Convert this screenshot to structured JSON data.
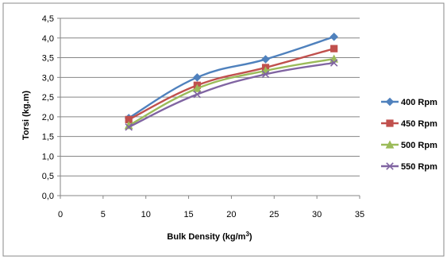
{
  "chart_data": {
    "type": "line",
    "xlabel": "Bulk Density (kg/m³)",
    "xlabel_main": "Bulk Density (kg/m",
    "xlabel_sup": "3",
    "xlabel_end": ")",
    "ylabel": "Torsi (kg.m)",
    "xlim": [
      0,
      35
    ],
    "ylim": [
      0,
      4.5
    ],
    "x_ticks": [
      "0",
      "5",
      "10",
      "15",
      "20",
      "25",
      "30",
      "35"
    ],
    "y_ticks": [
      "0,0",
      "0,5",
      "1,0",
      "1,5",
      "2,0",
      "2,5",
      "3,0",
      "3,5",
      "4,0",
      "4,5"
    ],
    "x": [
      8,
      16,
      24,
      32
    ],
    "grid": true,
    "legend_position": "right",
    "series": [
      {
        "name": "400 Rpm",
        "values": [
          1.97,
          3.0,
          3.46,
          4.03
        ],
        "color": "#4f81bd",
        "marker": "diamond"
      },
      {
        "name": "450 Rpm",
        "values": [
          1.93,
          2.8,
          3.25,
          3.73
        ],
        "color": "#c0504d",
        "marker": "square"
      },
      {
        "name": "500 Rpm",
        "values": [
          1.78,
          2.72,
          3.17,
          3.47
        ],
        "color": "#9bbb59",
        "marker": "triangle"
      },
      {
        "name": "550 Rpm",
        "values": [
          1.74,
          2.57,
          3.08,
          3.37
        ],
        "color": "#8064a2",
        "marker": "x"
      }
    ]
  }
}
